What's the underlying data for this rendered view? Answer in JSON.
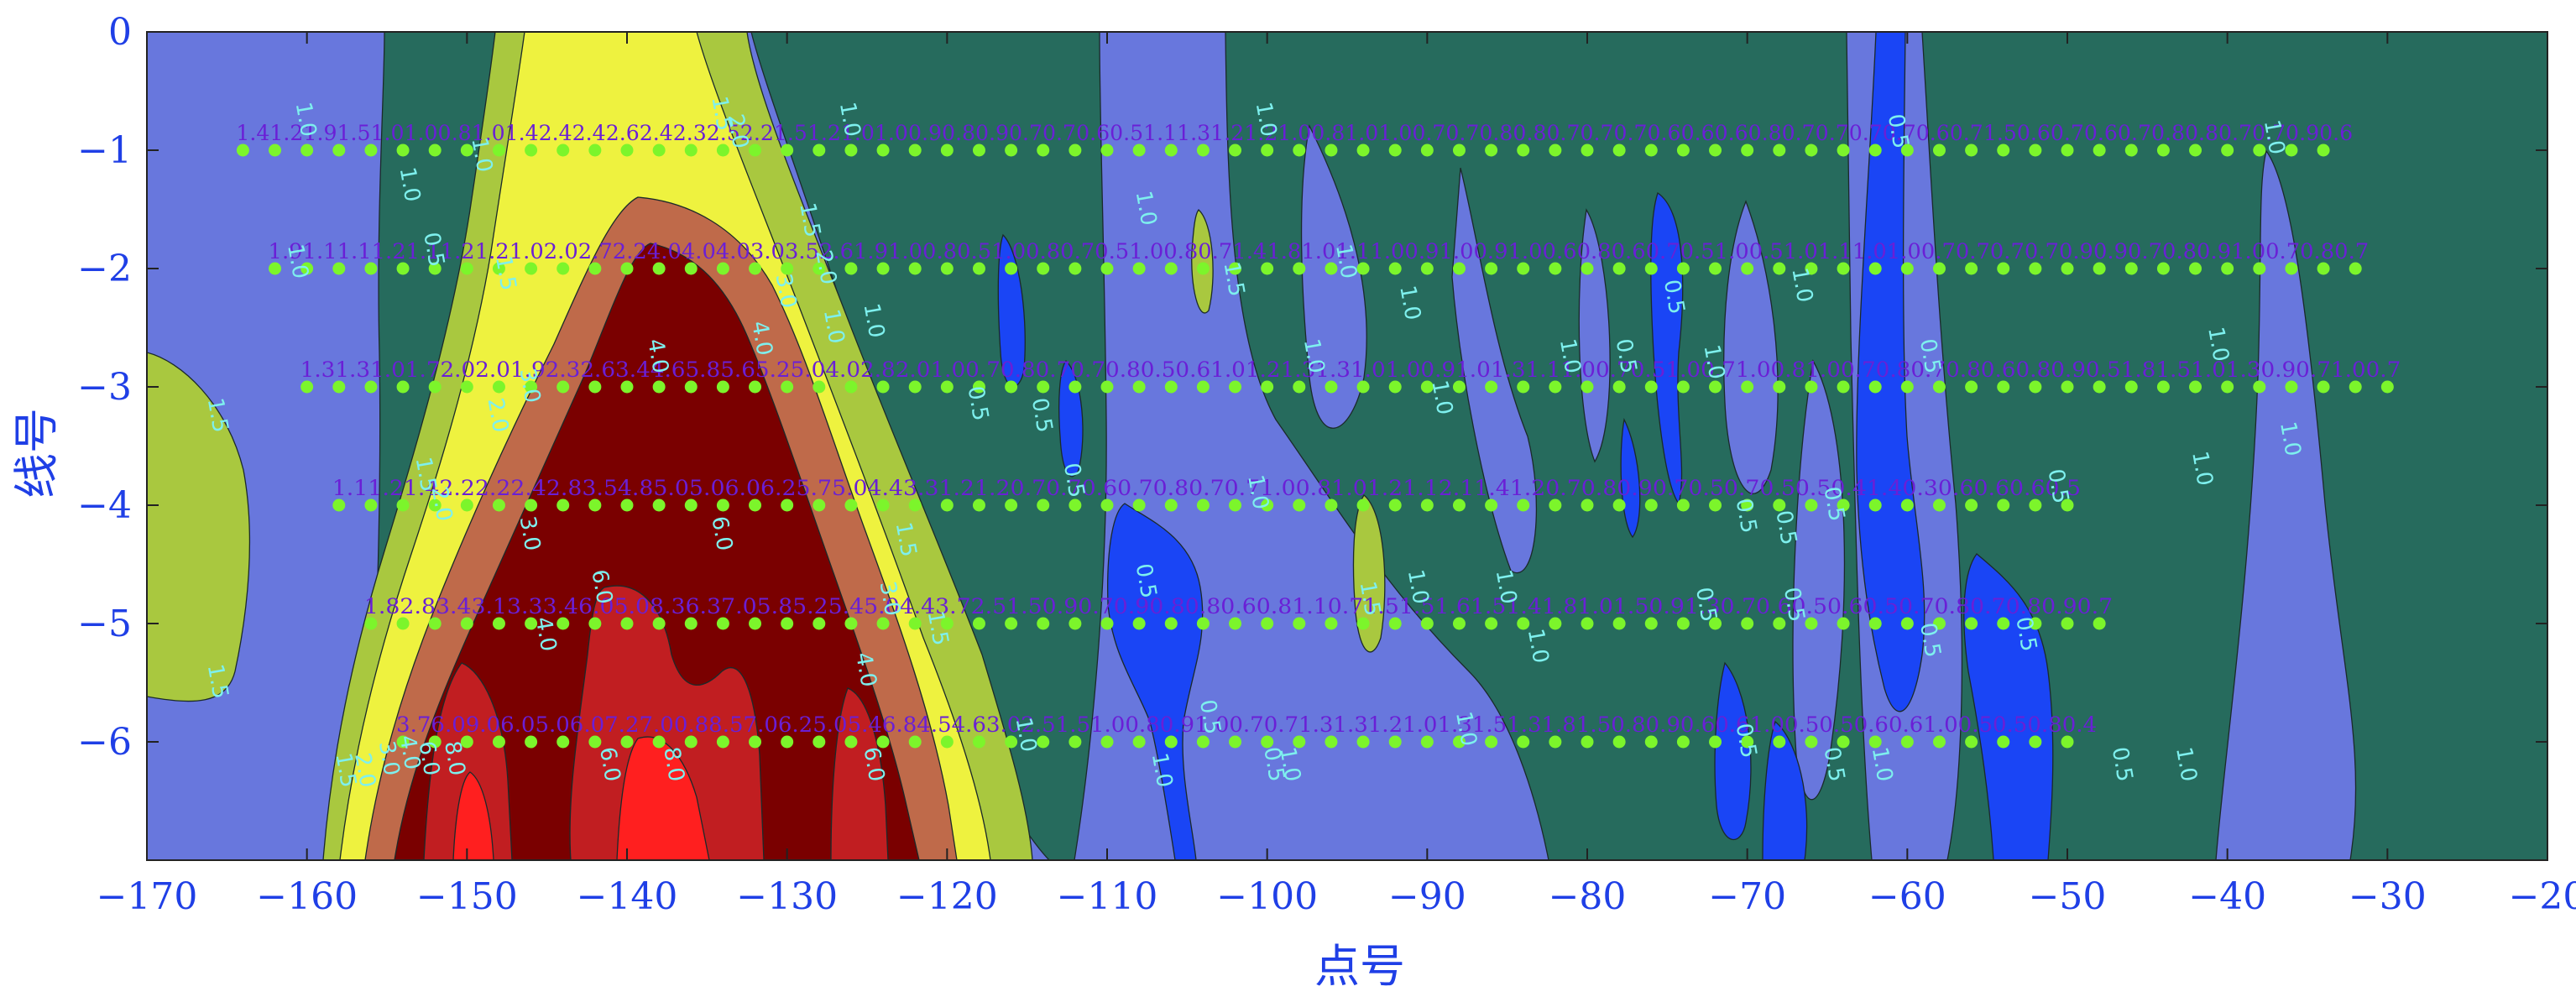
{
  "chart_data": {
    "type": "heatmap",
    "subtype": "filled-contour",
    "xlabel": "点号",
    "ylabel": "线号",
    "xlim": [
      -170,
      -20
    ],
    "ylim": [
      -7,
      0
    ],
    "x_ticks": [
      -170,
      -160,
      -150,
      -140,
      -130,
      -120,
      -110,
      -100,
      -90,
      -80,
      -70,
      -60,
      -50,
      -40,
      -30,
      -20
    ],
    "x_tick_labels": [
      "−170",
      "−160",
      "−150",
      "−140",
      "−130",
      "−120",
      "−110",
      "−100",
      "−90",
      "−80",
      "−70",
      "−60",
      "−50",
      "−40",
      "−30",
      "−20"
    ],
    "y_ticks": [
      0,
      -1,
      -2,
      -3,
      -4,
      -5,
      -6
    ],
    "y_tick_labels": [
      "0",
      "−1",
      "−2",
      "−3",
      "−4",
      "−5",
      "−6"
    ],
    "levels": [
      0.5,
      1.0,
      1.5,
      2.0,
      3.0,
      4.0,
      6.0,
      8.0
    ],
    "level_colors": [
      "#1a45f5",
      "#6877dd",
      "#266b5d",
      "#a9c83f",
      "#eef23f",
      "#bf6a4a",
      "#c11e21",
      "#7a0000",
      "#ff1f1f"
    ],
    "background_color": "#266b5d",
    "point_color": "#7cf52b",
    "contour_label_color": "#7ef0ee",
    "measurement_label_color": "#6a1fd6",
    "survey_lines": [
      {
        "line": -1,
        "x_start": -164,
        "x_end": -33,
        "label_text": "1.41.21.91.51.01.00.81.01.42.42.42.62.42.32.52.21.51.21.01.00.90.80.90.70.70.60.51.11.31.21.21.00.81.01.00.70.70.80.80.70.70.70.60.60.60.80.70.70.70.70.60.71.50.60.70.60.70.80.80.70.70.90.6"
      },
      {
        "line": -2,
        "x_start": -162,
        "x_end": -32,
        "label_text": "1.91.11.11.21.11.21.21.02.02.72.24.04.04.03.03.52.61.91.00.80.51.00.80.70.51.00.80.71.41.81.01.11.00.91.00.91.00.60.80.60.70.51.00.51.01.11.01.00.70.70.70.70.90.90.70.80.91.00.70.80.7"
      },
      {
        "line": -3,
        "x_start": -160,
        "x_end": -30,
        "label_text": "1.31.31.01.72.02.01.92.32.63.44.65.85.65.25.04.02.82.01.00.70.80.70.70.80.50.61.01.21.31.31.01.00.91.01.31.11.00.70.51.00.71.00.81.00.70.80.70.80.60.80.90.51.81.51.01.30.90.71.00.7"
      },
      {
        "line": -4,
        "x_start": -158,
        "x_end": -50,
        "label_text": "1.11.21.42.22.22.42.83.54.85.05.06.06.25.75.04.43.31.21.20.70.70.60.70.80.70.71.00.81.01.21.12.11.41.20.70.80.90.70.50.70.50.50.41.40.30.60.60.60.5"
      },
      {
        "line": -5,
        "x_start": -156,
        "x_end": -48,
        "label_text": "1.82.83.43.13.33.46.05.08.36.37.05.85.25.45.04.43.72.51.50.90.70.90.80.80.60.81.10.71.51.51.61.51.41.81.01.50.91.30.70.60.50.60.50.70.80.70.80.90.7"
      },
      {
        "line": -6,
        "x_start": -154,
        "x_end": -49,
        "label_text": "3.76.09.06.05.06.07.27.00.88.57.06.25.05.46.84.54.63.02.51.51.00.80.91.00.70.71.31.31.21.01.31.51.31.81.50.80.90.60.61.00.50.50.60.61.00.50.50.80.4"
      }
    ],
    "contour_labels": [
      {
        "x": -160.5,
        "y": -0.75,
        "text": "1.0"
      },
      {
        "x": -161,
        "y": -1.95,
        "text": "1.0"
      },
      {
        "x": -166,
        "y": -3.25,
        "text": "1.5"
      },
      {
        "x": -166,
        "y": -5.5,
        "text": "1.5"
      },
      {
        "x": -158,
        "y": -6.25,
        "text": "1.5"
      },
      {
        "x": -156.8,
        "y": -6.25,
        "text": "2.0"
      },
      {
        "x": -155.3,
        "y": -6.15,
        "text": "3.0"
      },
      {
        "x": -154,
        "y": -6.1,
        "text": "4.0"
      },
      {
        "x": -152.8,
        "y": -6.15,
        "text": "6.0"
      },
      {
        "x": -151.2,
        "y": -6.15,
        "text": "8.0"
      },
      {
        "x": -154,
        "y": -1.3,
        "text": "1.0"
      },
      {
        "x": -152.5,
        "y": -1.85,
        "text": "0.5"
      },
      {
        "x": -149.5,
        "y": -1.05,
        "text": "1.0"
      },
      {
        "x": -153,
        "y": -3.75,
        "text": "1.5"
      },
      {
        "x": -152,
        "y": -4,
        "text": "2.0"
      },
      {
        "x": -148,
        "y": -2.05,
        "text": "1.5"
      },
      {
        "x": -148.5,
        "y": -3.25,
        "text": "2.0"
      },
      {
        "x": -146.5,
        "y": -3.0,
        "text": "3.0"
      },
      {
        "x": -146.5,
        "y": -4.25,
        "text": "3.0"
      },
      {
        "x": -145.5,
        "y": -5.1,
        "text": "4.0"
      },
      {
        "x": -142,
        "y": -4.7,
        "text": "6.0"
      },
      {
        "x": -138.5,
        "y": -2.75,
        "text": "4.0"
      },
      {
        "x": -141.5,
        "y": -6.2,
        "text": "6.0"
      },
      {
        "x": -137.5,
        "y": -6.2,
        "text": "8.0"
      },
      {
        "x": -134.5,
        "y": -0.7,
        "text": "1.5"
      },
      {
        "x": -133.5,
        "y": -0.85,
        "text": "2.0"
      },
      {
        "x": -134.5,
        "y": -4.25,
        "text": "6.0"
      },
      {
        "x": -132,
        "y": -2.6,
        "text": "4.0"
      },
      {
        "x": -130.5,
        "y": -2.2,
        "text": "3.0"
      },
      {
        "x": -129,
        "y": -1.6,
        "text": "1.5"
      },
      {
        "x": -128,
        "y": -2.0,
        "text": "2.0"
      },
      {
        "x": -126.5,
        "y": -0.75,
        "text": "1.0"
      },
      {
        "x": -127.5,
        "y": -2.5,
        "text": "1.0"
      },
      {
        "x": -125,
        "y": -2.45,
        "text": "1.0"
      },
      {
        "x": -125,
        "y": -6.2,
        "text": "6.0"
      },
      {
        "x": -125.5,
        "y": -5.4,
        "text": "4.0"
      },
      {
        "x": -124,
        "y": -4.8,
        "text": "3.0"
      },
      {
        "x": -123,
        "y": -4.3,
        "text": "1.5"
      },
      {
        "x": -121,
        "y": -5.05,
        "text": "1.5"
      },
      {
        "x": -118.5,
        "y": -3.15,
        "text": "0.5"
      },
      {
        "x": -114.5,
        "y": -3.25,
        "text": "0.5"
      },
      {
        "x": -112.5,
        "y": -3.8,
        "text": "0.5"
      },
      {
        "x": -115.5,
        "y": -5.95,
        "text": "1.0"
      },
      {
        "x": -108,
        "y": -1.5,
        "text": "1.0"
      },
      {
        "x": -108,
        "y": -4.65,
        "text": "0.5"
      },
      {
        "x": -107,
        "y": -6.25,
        "text": "1.0"
      },
      {
        "x": -104,
        "y": -5.8,
        "text": "0.5"
      },
      {
        "x": -102.5,
        "y": -2.1,
        "text": "1.5"
      },
      {
        "x": -101,
        "y": -3.9,
        "text": "1.0"
      },
      {
        "x": -100.5,
        "y": -0.75,
        "text": "1.0"
      },
      {
        "x": -100,
        "y": -6.2,
        "text": "0.5"
      },
      {
        "x": -99,
        "y": -6.2,
        "text": "1.0"
      },
      {
        "x": -97.5,
        "y": -2.75,
        "text": "1.0"
      },
      {
        "x": -95.5,
        "y": -1.95,
        "text": "1.0"
      },
      {
        "x": -94,
        "y": -4.8,
        "text": "1.5"
      },
      {
        "x": -91.5,
        "y": -2.3,
        "text": "1.0"
      },
      {
        "x": -91,
        "y": -4.7,
        "text": "1.0"
      },
      {
        "x": -89.5,
        "y": -3.1,
        "text": "1.0"
      },
      {
        "x": -88,
        "y": -5.9,
        "text": "1.0"
      },
      {
        "x": -85.5,
        "y": -4.7,
        "text": "1.0"
      },
      {
        "x": -83.5,
        "y": -5.2,
        "text": "1.0"
      },
      {
        "x": -81.5,
        "y": -2.75,
        "text": "1.0"
      },
      {
        "x": -78,
        "y": -2.75,
        "text": "0.5"
      },
      {
        "x": -75,
        "y": -2.25,
        "text": "0.5"
      },
      {
        "x": -73,
        "y": -4.85,
        "text": "0.5"
      },
      {
        "x": -72.5,
        "y": -2.8,
        "text": "1.0"
      },
      {
        "x": -70.5,
        "y": -6.0,
        "text": "0.5"
      },
      {
        "x": -70.5,
        "y": -4.1,
        "text": "0.5"
      },
      {
        "x": -68,
        "y": -4.2,
        "text": "0.5"
      },
      {
        "x": -67,
        "y": -2.15,
        "text": "1.0"
      },
      {
        "x": -67.5,
        "y": -4.85,
        "text": "0.5"
      },
      {
        "x": -65,
        "y": -6.2,
        "text": "0.5"
      },
      {
        "x": -65,
        "y": -4.0,
        "text": "0.5"
      },
      {
        "x": -62,
        "y": -6.2,
        "text": "1.0"
      },
      {
        "x": -61,
        "y": -0.85,
        "text": "0.5"
      },
      {
        "x": -59,
        "y": -2.75,
        "text": "0.5"
      },
      {
        "x": -59,
        "y": -5.15,
        "text": "0.5"
      },
      {
        "x": -53,
        "y": -5.1,
        "text": "0.5"
      },
      {
        "x": -51,
        "y": -3.85,
        "text": "0.5"
      },
      {
        "x": -47,
        "y": -6.2,
        "text": "0.5"
      },
      {
        "x": -43,
        "y": -6.2,
        "text": "1.0"
      },
      {
        "x": -42,
        "y": -3.7,
        "text": "1.0"
      },
      {
        "x": -41,
        "y": -2.65,
        "text": "1.0"
      },
      {
        "x": -37.5,
        "y": -0.9,
        "text": "1.0"
      },
      {
        "x": -36.5,
        "y": -3.45,
        "text": "1.0"
      }
    ]
  }
}
